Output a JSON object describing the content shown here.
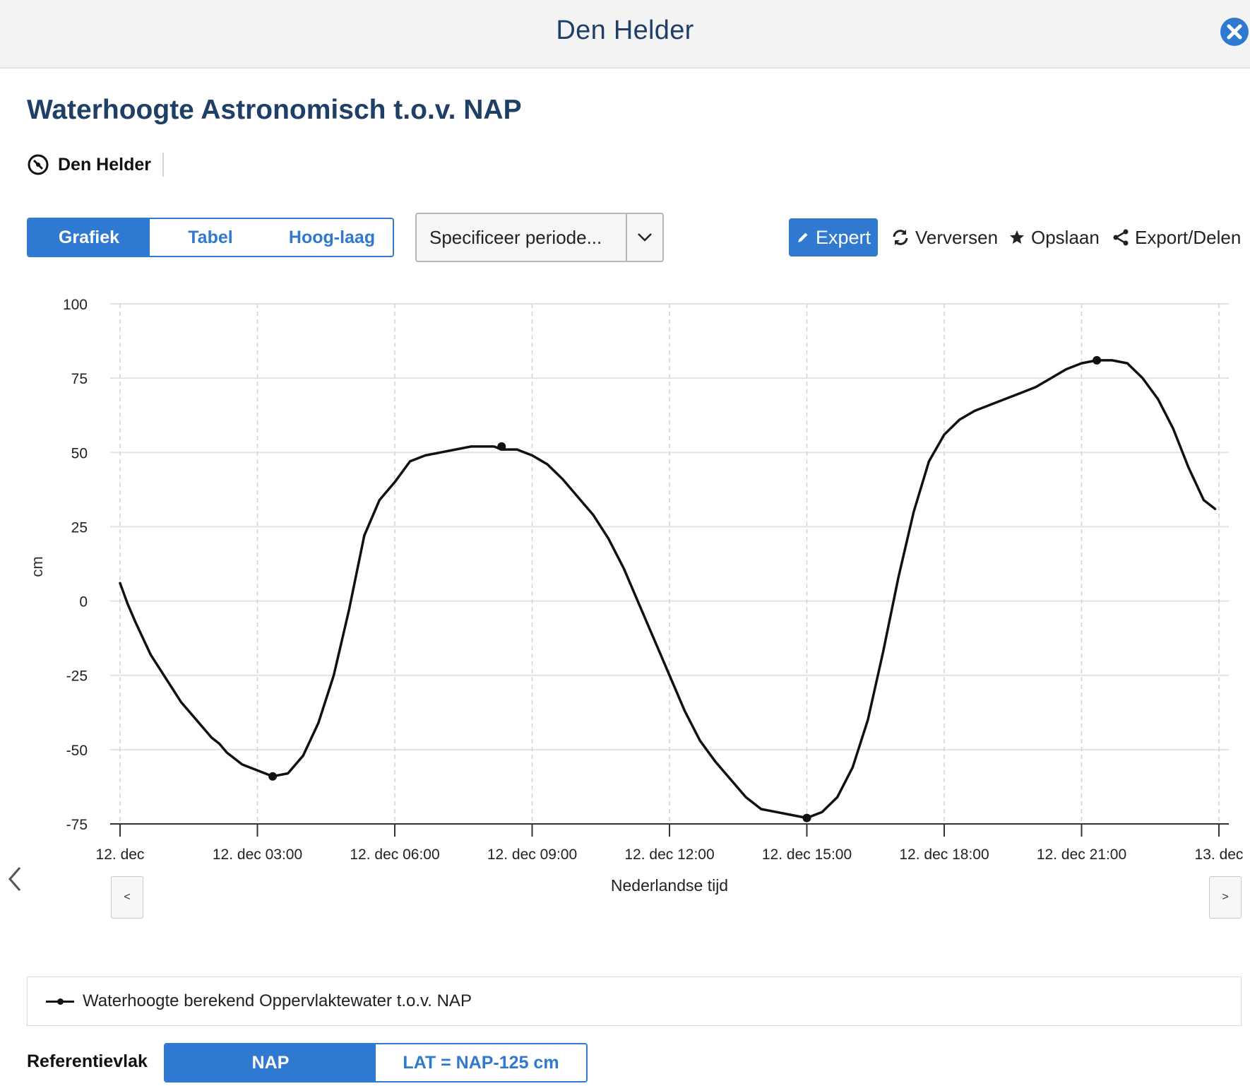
{
  "header": {
    "title": "Den Helder"
  },
  "page": {
    "title": "Waterhoogte Astronomisch t.o.v. NAP"
  },
  "location": {
    "name": "Den Helder"
  },
  "view_tabs": [
    {
      "label": "Grafiek",
      "active": true
    },
    {
      "label": "Tabel",
      "active": false
    },
    {
      "label": "Hoog-laag",
      "active": false
    }
  ],
  "period": {
    "label": "Specificeer periode..."
  },
  "toolbar": {
    "expert_label": "Expert",
    "refresh_label": "Verversen",
    "save_label": "Opslaan",
    "share_label": "Export/Delen"
  },
  "pan": {
    "left_label": "<",
    "right_label": ">"
  },
  "reference": {
    "label": "Referentievlak",
    "options": [
      {
        "label": "NAP",
        "active": true
      },
      {
        "label": "LAT = NAP-125 cm",
        "active": false
      }
    ]
  },
  "colors": {
    "accent": "#2f7ad0",
    "title": "#1f3f66",
    "line": "#111111"
  },
  "chart_data": {
    "type": "line",
    "title": "",
    "xlabel": "Nederlandse tijd",
    "ylabel": "cm",
    "ylim": [
      -75,
      100
    ],
    "xlim": [
      "2023-12-12T00:00",
      "2023-12-13T00:00"
    ],
    "y_ticks": [
      100,
      75,
      50,
      25,
      0,
      -25,
      -50,
      -75
    ],
    "x_ticks": [
      {
        "t": "12-12 00:00",
        "label": "12. dec"
      },
      {
        "t": "12-12 03:00",
        "label": "12. dec 03:00"
      },
      {
        "t": "12-12 06:00",
        "label": "12. dec 06:00"
      },
      {
        "t": "12-12 09:00",
        "label": "12. dec 09:00"
      },
      {
        "t": "12-12 12:00",
        "label": "12. dec 12:00"
      },
      {
        "t": "12-12 15:00",
        "label": "12. dec 15:00"
      },
      {
        "t": "12-12 18:00",
        "label": "12. dec 18:00"
      },
      {
        "t": "12-12 21:00",
        "label": "12. dec 21:00"
      },
      {
        "t": "12-13 00:00",
        "label": "13. dec"
      }
    ],
    "grid": true,
    "legend_position": "bottom",
    "series": [
      {
        "name": "Waterhoogte berekend Oppervlaktewater t.o.v. NAP",
        "color": "#111111",
        "x": [
          "12-12 00:00",
          "12-12 00:10",
          "12-12 00:20",
          "12-12 00:40",
          "12-12 01:00",
          "12-12 01:20",
          "12-12 01:40",
          "12-12 02:00",
          "12-12 02:10",
          "12-12 02:20",
          "12-12 02:40",
          "12-12 03:00",
          "12-12 03:20",
          "12-12 03:40",
          "12-12 04:00",
          "12-12 04:20",
          "12-12 04:40",
          "12-12 05:00",
          "12-12 05:20",
          "12-12 05:40",
          "12-12 06:00",
          "12-12 06:20",
          "12-12 06:40",
          "12-12 07:00",
          "12-12 07:20",
          "12-12 07:40",
          "12-12 08:00",
          "12-12 08:10",
          "12-12 08:20",
          "12-12 08:40",
          "12-12 09:00",
          "12-12 09:20",
          "12-12 09:40",
          "12-12 10:00",
          "12-12 10:20",
          "12-12 10:40",
          "12-12 11:00",
          "12-12 11:20",
          "12-12 11:40",
          "12-12 12:00",
          "12-12 12:20",
          "12-12 12:40",
          "12-12 13:00",
          "12-12 13:20",
          "12-12 13:40",
          "12-12 14:00",
          "12-12 14:20",
          "12-12 14:40",
          "12-12 15:00",
          "12-12 15:10",
          "12-12 15:20",
          "12-12 15:40",
          "12-12 16:00",
          "12-12 16:20",
          "12-12 16:40",
          "12-12 17:00",
          "12-12 17:20",
          "12-12 17:40",
          "12-12 18:00",
          "12-12 18:20",
          "12-12 18:40",
          "12-12 19:00",
          "12-12 19:20",
          "12-12 19:40",
          "12-12 20:00",
          "12-12 20:20",
          "12-12 20:40",
          "12-12 21:00",
          "12-12 21:20",
          "12-12 21:40",
          "12-12 22:00",
          "12-12 22:20",
          "12-12 22:40",
          "12-12 23:00",
          "12-12 23:20",
          "12-12 23:40",
          "12-12 23:55"
        ],
        "values": [
          6,
          -1,
          -7,
          -18,
          -26,
          -34,
          -40,
          -46,
          -48,
          -51,
          -55,
          -57,
          -59,
          -58,
          -52,
          -41,
          -25,
          -3,
          22,
          34,
          40,
          47,
          49,
          50,
          51,
          52,
          52,
          52,
          51,
          51,
          49,
          46,
          41,
          35,
          29,
          21,
          11,
          -1,
          -13,
          -25,
          -37,
          -47,
          -54,
          -60,
          -66,
          -70,
          -71,
          -72,
          -73,
          -72,
          -71,
          -66,
          -56,
          -40,
          -17,
          8,
          30,
          47,
          56,
          61,
          64,
          66,
          68,
          70,
          72,
          75,
          78,
          80,
          81,
          81,
          80,
          75,
          68,
          58,
          45,
          34,
          31
        ]
      }
    ],
    "markers": [
      {
        "x": "12-12 03:20",
        "y": -59
      },
      {
        "x": "12-12 08:20",
        "y": 52
      },
      {
        "x": "12-12 15:00",
        "y": -73
      },
      {
        "x": "12-12 21:20",
        "y": 81
      }
    ]
  }
}
